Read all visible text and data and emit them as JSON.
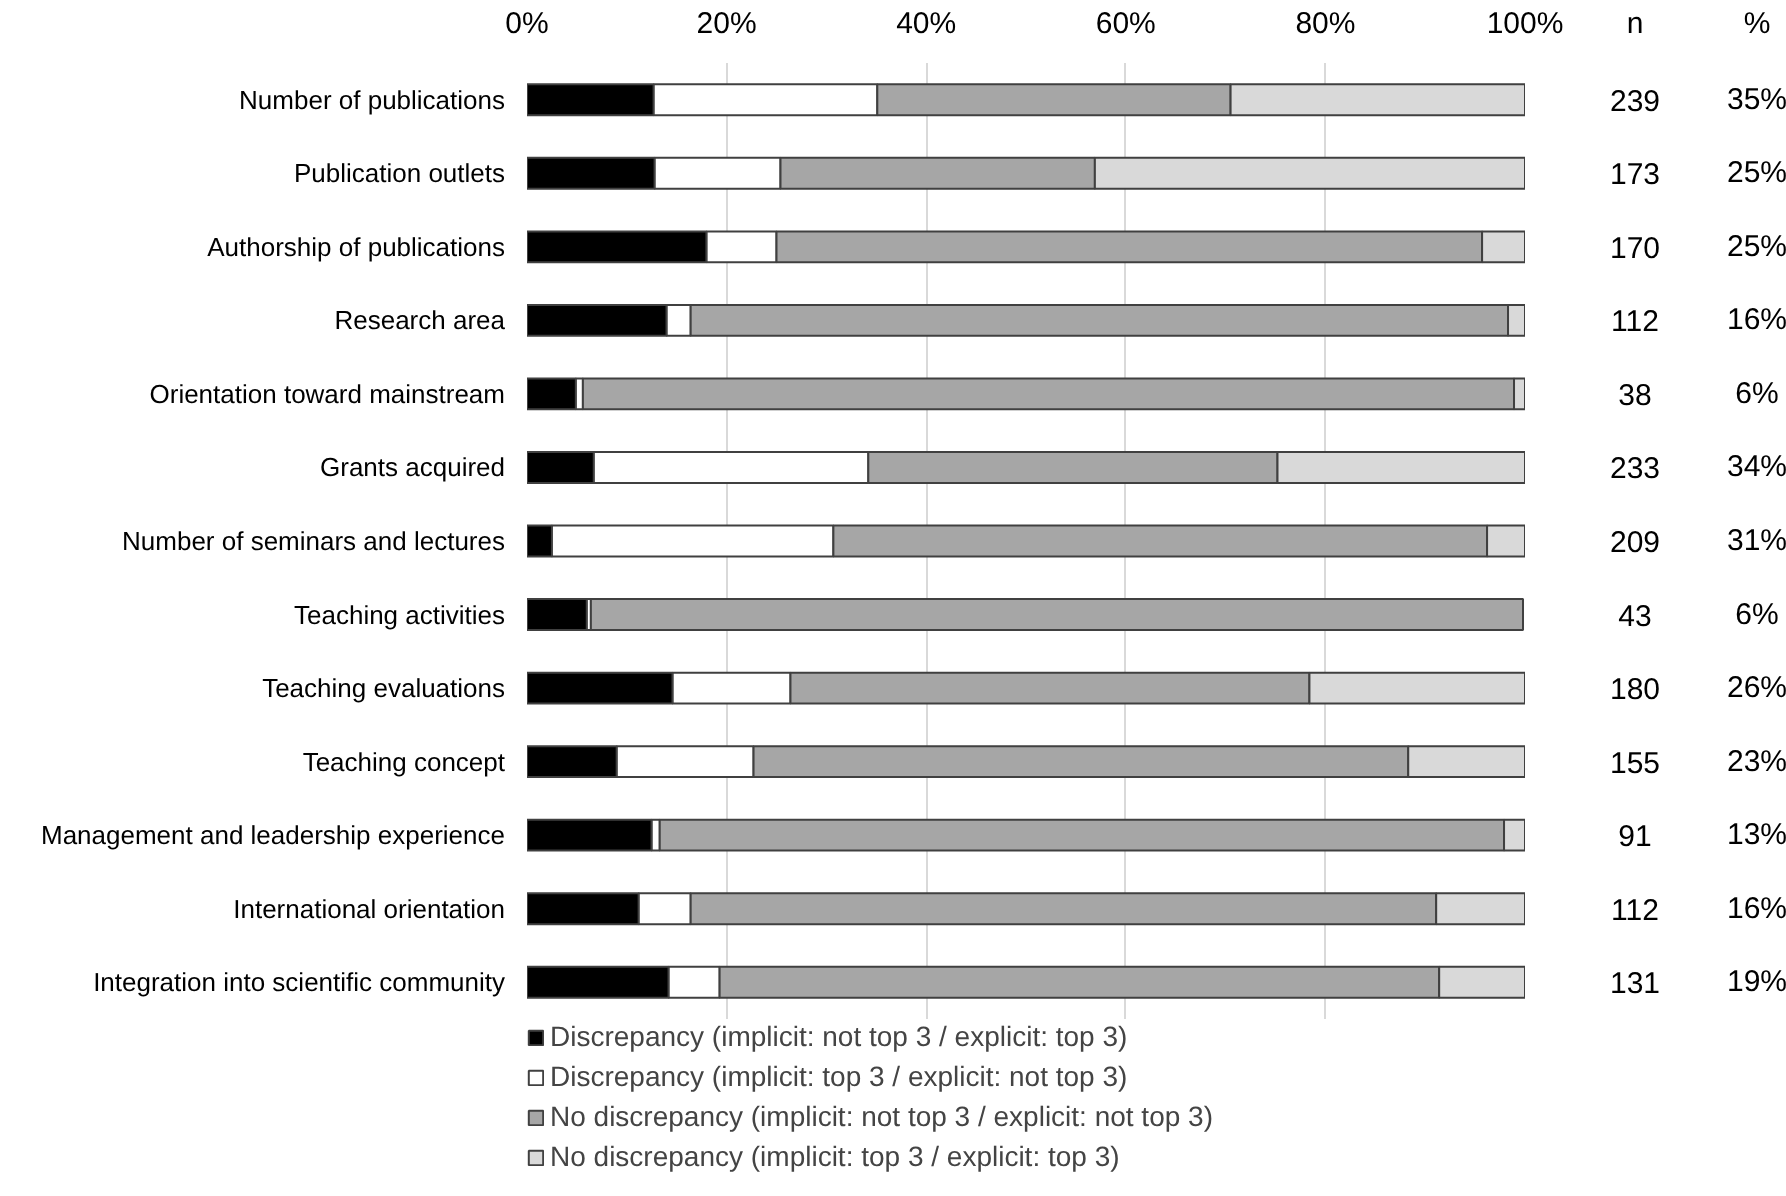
{
  "chart_data": {
    "type": "bar",
    "orientation": "horizontal",
    "stacked": true,
    "categories": [
      "Number of publications",
      "Publication outlets",
      "Authorship of publications",
      "Research area",
      "Orientation toward mainstream",
      "Grants acquired",
      "Number of seminars and lectures",
      "Teaching activities",
      "Teaching evaluations",
      "Teaching concept",
      "Management and leadership experience",
      "International orientation",
      "Integration into scientific community"
    ],
    "series": [
      {
        "name": "Discrepancy (implicit: not top 3 / explicit: top 3)",
        "color": "#000000",
        "values": [
          12.7,
          12.8,
          18.0,
          14.0,
          4.9,
          6.7,
          2.5,
          6.0,
          14.6,
          9.0,
          12.5,
          11.2,
          14.2
        ]
      },
      {
        "name": "Discrepancy (implicit: top 3 / explicit: not top 3)",
        "color": "#ffffff",
        "values": [
          22.4,
          12.6,
          7.0,
          2.4,
          0.7,
          27.5,
          28.2,
          0.4,
          11.8,
          13.7,
          0.8,
          5.2,
          5.1
        ]
      },
      {
        "name": "No discrepancy (implicit: not top 3 / explicit: not top 3)",
        "color": "#a6a6a6",
        "values": [
          35.4,
          31.5,
          70.7,
          81.9,
          93.3,
          41.0,
          65.5,
          93.4,
          52.0,
          65.6,
          84.6,
          74.7,
          72.1
        ]
      },
      {
        "name": "No discrepancy (implicit: top 3 / explicit: top 3)",
        "color": "#d9d9d9",
        "values": [
          29.5,
          43.1,
          4.3,
          1.7,
          1.1,
          24.8,
          3.8,
          null,
          21.6,
          11.7,
          2.1,
          8.9,
          8.6
        ]
      }
    ],
    "xlim": [
      0,
      100
    ],
    "xticks": [
      {
        "value": 0,
        "label": "0%"
      },
      {
        "value": 20,
        "label": "20%"
      },
      {
        "value": 40,
        "label": "40%"
      },
      {
        "value": 60,
        "label": "60%"
      },
      {
        "value": 80,
        "label": "80%"
      },
      {
        "value": 100,
        "label": "100%"
      }
    ],
    "grid": "x",
    "legend": "bottom",
    "annotations": [
      "n",
      "%",
      "239",
      "35%",
      "173",
      "25%",
      "170",
      "25%",
      "112",
      "16%",
      "38",
      "6%",
      "233",
      "34%",
      "209",
      "31%",
      "43",
      "6%",
      "180",
      "26%",
      "155",
      "23%",
      "91",
      "13%",
      "112",
      "16%",
      "131",
      "19%"
    ]
  }
}
